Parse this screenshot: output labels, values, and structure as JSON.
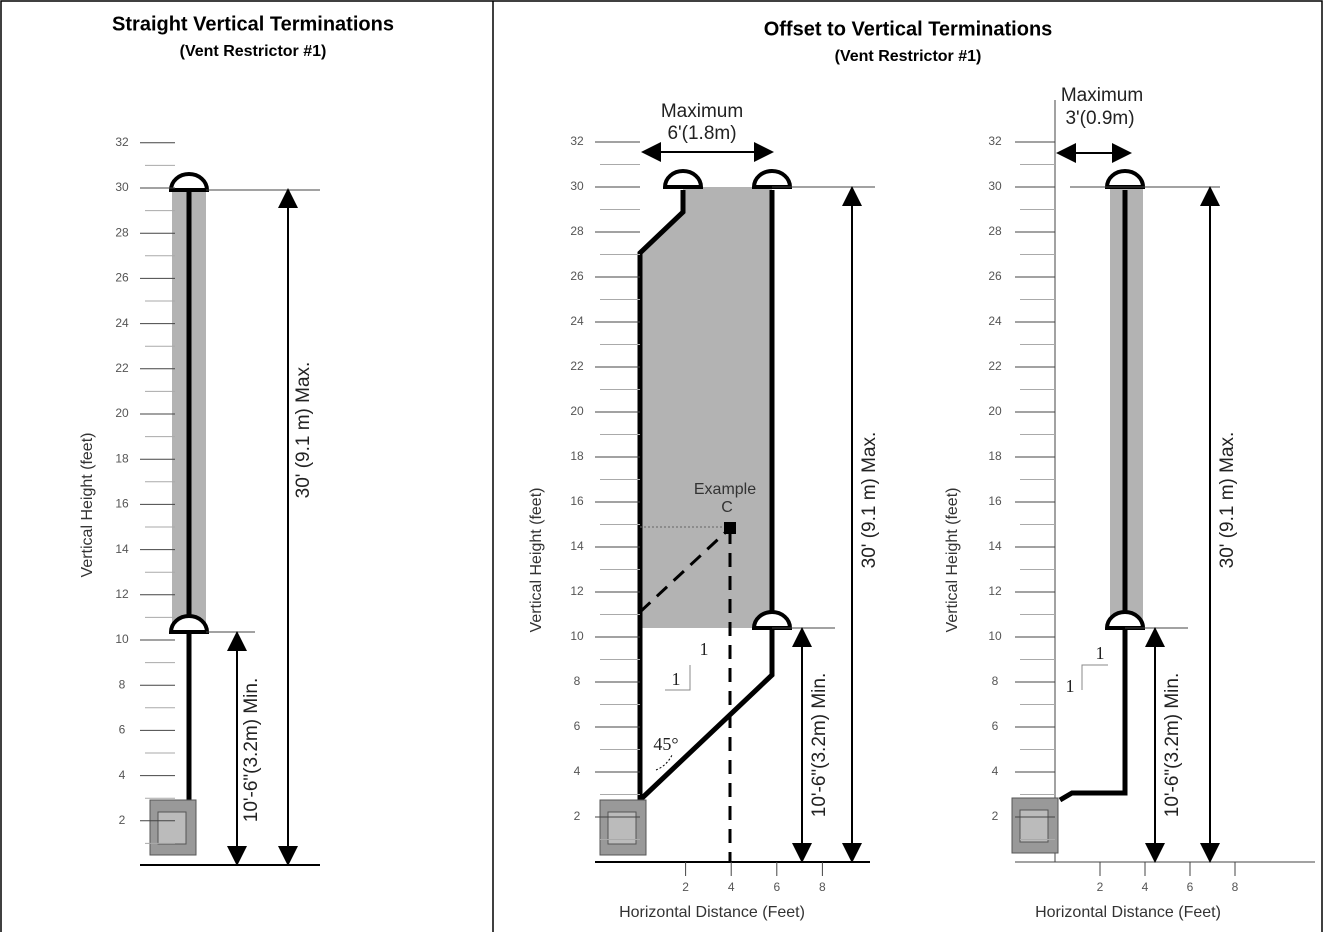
{
  "straight": {
    "title": "Straight Vertical Terminations",
    "subtitle": "(Vent Restrictor #1)",
    "y_axis_label": "Vertical Height (feet)",
    "y_ticks": [
      32,
      30,
      28,
      26,
      24,
      22,
      20,
      18,
      16,
      14,
      12,
      10,
      8,
      6,
      4,
      2
    ],
    "max_label": "30' (9.1 m) Max.",
    "min_label": "10'-6\"(3.2m) Min."
  },
  "offset": {
    "title": "Offset to Vertical Terminations",
    "subtitle": "(Vent Restrictor #1)",
    "diagram_a": {
      "max_heading": "Maximum",
      "max_value": "6'(1.8m)",
      "y_axis_label": "Vertical Height (feet)",
      "y_ticks": [
        32,
        30,
        28,
        26,
        24,
        22,
        20,
        18,
        16,
        14,
        12,
        10,
        8,
        6,
        4,
        2
      ],
      "x_ticks": [
        2,
        4,
        6,
        8
      ],
      "x_axis_label": "Horizontal Distance (Feet)",
      "example_label": "Example",
      "example_id": "C",
      "angle_label": "45°",
      "slope_rise": "1",
      "slope_run": "1",
      "max_label": "30' (9.1 m) Max.",
      "min_label": "10'-6\"(3.2m) Min."
    },
    "diagram_b": {
      "max_heading": "Maximum",
      "max_value": "3'(0.9m)",
      "y_axis_label": "Vertical Height (feet)",
      "y_ticks": [
        32,
        30,
        28,
        26,
        24,
        22,
        20,
        18,
        16,
        14,
        12,
        10,
        8,
        6,
        4,
        2
      ],
      "x_ticks": [
        2,
        4,
        6,
        8
      ],
      "x_axis_label": "Horizontal Distance (Feet)",
      "slope_rise": "1",
      "slope_run": "1",
      "max_label": "30' (9.1 m) Max.",
      "min_label": "10'-6\"(3.2m) Min."
    }
  }
}
